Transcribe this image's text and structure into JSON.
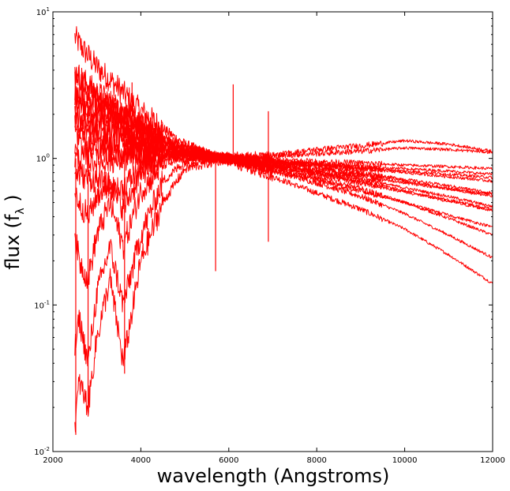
{
  "chart_data": {
    "type": "line",
    "title": "",
    "xlabel": "wavelength (Angstroms)",
    "ylabel_text": "flux (f",
    "ylabel_subscript": "λ",
    "ylabel_close": " )",
    "xscale": "linear",
    "yscale": "log",
    "xlim": [
      2000,
      12000
    ],
    "ylim": [
      0.01,
      10
    ],
    "grid": false,
    "legend": "none",
    "line_color": "#ff0000",
    "x_ticks": [
      {
        "value": 2000,
        "label": "2000"
      },
      {
        "value": 4000,
        "label": "4000"
      },
      {
        "value": 6000,
        "label": "6000"
      },
      {
        "value": 8000,
        "label": "8000"
      },
      {
        "value": 10000,
        "label": "10000"
      },
      {
        "value": 12000,
        "label": "12000"
      }
    ],
    "y_ticks": [
      {
        "value": 0.01,
        "base": "10",
        "exp": "-2"
      },
      {
        "value": 0.1,
        "base": "10",
        "exp": "-1"
      },
      {
        "value": 1,
        "base": "10",
        "exp": "0"
      },
      {
        "value": 10,
        "base": "10",
        "exp": "1"
      }
    ],
    "series_note_count": 60,
    "series": [
      {
        "x": [
          2500,
          2700,
          3000,
          3500,
          4000,
          4500,
          5000,
          6000,
          7000,
          8000,
          9000,
          10000,
          11000,
          12000
        ],
        "y": [
          6.7,
          5.5,
          4.2,
          3.0,
          2.1,
          1.6,
          1.25,
          0.95,
          0.75,
          0.58,
          0.45,
          0.33,
          0.22,
          0.14
        ]
      },
      {
        "x": [
          2500,
          2700,
          3000,
          3500,
          4000,
          4500,
          5000,
          6000,
          7000,
          8000,
          9000,
          10000,
          11000,
          12000
        ],
        "y": [
          3.9,
          3.4,
          2.8,
          2.2,
          1.7,
          1.4,
          1.2,
          0.98,
          0.82,
          0.68,
          0.55,
          0.42,
          0.3,
          0.21
        ]
      },
      {
        "x": [
          2500,
          2700,
          3000,
          3500,
          4000,
          4500,
          5000,
          6000,
          7000,
          8000,
          9000,
          10000,
          11000,
          12000
        ],
        "y": [
          3.5,
          3.1,
          2.6,
          2.1,
          1.65,
          1.35,
          1.15,
          0.97,
          0.84,
          0.73,
          0.62,
          0.5,
          0.39,
          0.3
        ]
      },
      {
        "x": [
          2500,
          2700,
          3000,
          3500,
          4000,
          4500,
          5000,
          6000,
          7000,
          8000,
          9000,
          10000,
          11000,
          12000
        ],
        "y": [
          2.6,
          2.3,
          2.0,
          1.7,
          1.45,
          1.25,
          1.1,
          0.98,
          0.88,
          0.8,
          0.72,
          0.63,
          0.55,
          0.47
        ]
      },
      {
        "x": [
          2500,
          2700,
          3000,
          3500,
          4000,
          4500,
          5000,
          6000,
          7000,
          8000,
          9000,
          10000,
          11000,
          12000
        ],
        "y": [
          2.0,
          1.9,
          1.7,
          1.5,
          1.3,
          1.18,
          1.08,
          1.0,
          0.95,
          0.9,
          0.86,
          0.82,
          0.78,
          0.74
        ]
      },
      {
        "x": [
          2500,
          2700,
          3000,
          3500,
          4000,
          4500,
          5000,
          6000,
          7000,
          8000,
          9000,
          10000,
          11000,
          12000
        ],
        "y": [
          1.5,
          1.45,
          1.35,
          1.25,
          1.18,
          1.1,
          1.05,
          1.02,
          1.04,
          1.08,
          1.12,
          1.18,
          1.15,
          1.1
        ]
      },
      {
        "x": [
          2500,
          2700,
          3000,
          3500,
          4000,
          4500,
          5000,
          6000,
          7000,
          8000,
          9000,
          10000,
          11000,
          12000
        ],
        "y": [
          1.0,
          1.0,
          0.95,
          0.98,
          1.02,
          1.05,
          1.02,
          1.0,
          1.05,
          1.15,
          1.22,
          1.32,
          1.25,
          1.12
        ]
      },
      {
        "x": [
          2500,
          2600,
          2800,
          3000,
          3300,
          3600,
          4000,
          4500,
          5000,
          6000,
          7000,
          8000,
          9000,
          10000,
          11000,
          12000
        ],
        "y": [
          0.3,
          0.2,
          0.15,
          0.3,
          0.5,
          0.25,
          0.6,
          0.9,
          1.0,
          1.0,
          0.92,
          0.85,
          0.78,
          0.7,
          0.62,
          0.55
        ]
      },
      {
        "x": [
          2500,
          2600,
          2800,
          3000,
          3300,
          3600,
          4000,
          4500,
          5000,
          6000,
          7000,
          8000,
          9000,
          10000,
          11000,
          12000
        ],
        "y": [
          0.05,
          0.08,
          0.04,
          0.12,
          0.25,
          0.1,
          0.3,
          0.7,
          0.95,
          1.0,
          0.9,
          0.8,
          0.7,
          0.6,
          0.52,
          0.45
        ]
      },
      {
        "x": [
          2500,
          2600,
          2800,
          3000,
          3300,
          3600,
          4000,
          4500,
          5000,
          6000,
          7000,
          8000,
          9000,
          10000,
          11000,
          12000
        ],
        "y": [
          0.6,
          0.5,
          0.4,
          0.55,
          0.7,
          0.45,
          0.8,
          1.0,
          1.05,
          0.98,
          0.95,
          0.9,
          0.85,
          0.8,
          0.75,
          0.7
        ]
      },
      {
        "x": [
          2500,
          2600,
          2800,
          3000,
          3300,
          3600,
          4000,
          4500,
          5000,
          6000,
          7000,
          8000,
          9000,
          10000,
          11000,
          12000
        ],
        "y": [
          0.015,
          0.03,
          0.02,
          0.06,
          0.15,
          0.04,
          0.2,
          0.5,
          0.85,
          1.0,
          0.95,
          0.88,
          0.8,
          0.72,
          0.65,
          0.58
        ]
      },
      {
        "x": [
          2500,
          3000,
          3500,
          4000,
          4500,
          5000,
          6000,
          7000,
          8000,
          9000,
          10000,
          11000,
          12000
        ],
        "y": [
          0.8,
          0.7,
          0.6,
          0.85,
          1.05,
          1.08,
          1.0,
          0.98,
          0.95,
          0.93,
          0.9,
          0.88,
          0.85
        ]
      },
      {
        "x": [
          2500,
          3000,
          3500,
          4000,
          4500,
          5000,
          6000,
          7000,
          8000,
          9000,
          10000,
          11000,
          12000
        ],
        "y": [
          1.2,
          1.15,
          1.1,
          1.1,
          1.1,
          1.05,
          1.0,
          0.96,
          0.92,
          0.88,
          0.85,
          0.82,
          0.78
        ]
      },
      {
        "x": [
          2500,
          3000,
          3500,
          4000,
          4500,
          5000,
          6000,
          7000,
          8000,
          9000,
          10000,
          11000,
          12000
        ],
        "y": [
          1.7,
          1.55,
          1.4,
          1.28,
          1.18,
          1.1,
          1.0,
          0.9,
          0.82,
          0.75,
          0.68,
          0.62,
          0.57
        ]
      },
      {
        "x": [
          2500,
          3000,
          3500,
          4000,
          4500,
          5000,
          6000,
          7000,
          8000,
          9000,
          10000,
          11000,
          12000
        ],
        "y": [
          2.3,
          2.0,
          1.75,
          1.5,
          1.3,
          1.15,
          1.0,
          0.88,
          0.77,
          0.68,
          0.59,
          0.51,
          0.44
        ]
      },
      {
        "x": [
          2500,
          3000,
          3500,
          4000,
          4500,
          5000,
          6000,
          7000,
          8000,
          9000,
          10000,
          11000,
          12000
        ],
        "y": [
          2.9,
          2.5,
          2.0,
          1.65,
          1.38,
          1.18,
          0.98,
          0.84,
          0.71,
          0.6,
          0.5,
          0.41,
          0.34
        ]
      }
    ],
    "spikes": [
      {
        "x": 3800,
        "y_low": 1.0,
        "y_high": 3.3
      },
      {
        "x": 5700,
        "y_low": 0.17,
        "y_high": 1.0
      },
      {
        "x": 6100,
        "y_low": 1.0,
        "y_high": 3.2
      },
      {
        "x": 6900,
        "y_low": 0.27,
        "y_high": 2.1
      },
      {
        "x": 3630,
        "y_low": 0.034,
        "y_high": 2.2
      },
      {
        "x": 2800,
        "y_low": 0.019,
        "y_high": 1.0
      },
      {
        "x": 2520,
        "y_low": 0.013,
        "y_high": 1.0
      }
    ]
  }
}
